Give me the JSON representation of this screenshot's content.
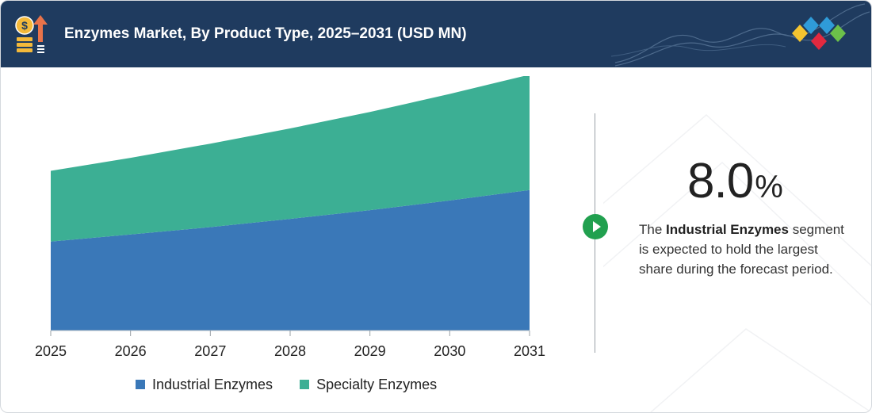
{
  "header": {
    "title": "Enzymes Market, By Product Type, 2025–2031 (USD MN)",
    "icon": "money-growth-icon",
    "logo": "diamond-logo-icon",
    "background_color": "#1f3b5f"
  },
  "chart_data": {
    "type": "area",
    "stacked": true,
    "title": "Enzymes Market, By Product Type, 2025–2031 (USD MN)",
    "x": [
      "2025",
      "2026",
      "2027",
      "2028",
      "2029",
      "2030",
      "2031"
    ],
    "xlabel": "",
    "ylabel": "",
    "ylim": [
      0,
      9
    ],
    "grid": false,
    "legend": "bottom",
    "series": [
      {
        "name": "Industrial Enzymes",
        "color": "#3a78b8",
        "values": [
          3.15,
          3.4,
          3.66,
          3.95,
          4.26,
          4.6,
          4.97
        ]
      },
      {
        "name": "Specialty Enzymes",
        "color": "#3caf94",
        "values": [
          2.5,
          2.71,
          2.95,
          3.2,
          3.47,
          3.77,
          4.08
        ]
      }
    ]
  },
  "stat": {
    "value": "8.0",
    "unit": "%",
    "desc_prefix": "The ",
    "desc_highlight": "Industrial Enzymes",
    "desc_suffix": " segment is expected to hold the largest share during the forecast period.",
    "play_icon": "play-icon",
    "accent_color": "#21a04f"
  }
}
